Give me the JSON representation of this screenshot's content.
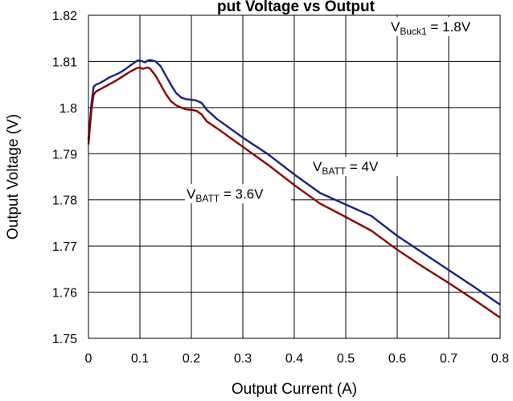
{
  "chart_data": {
    "type": "line",
    "title": "put Voltage vs Output",
    "xlabel": "Output Current (A)",
    "ylabel": "Output Voltage (V)",
    "xlim": [
      0,
      0.8
    ],
    "ylim": [
      1.75,
      1.82
    ],
    "xticks": [
      0,
      0.1,
      0.2,
      0.3,
      0.4,
      0.5,
      0.6,
      0.7,
      0.8
    ],
    "yticks": [
      1.75,
      1.76,
      1.77,
      1.78,
      1.79,
      1.8,
      1.81,
      1.82
    ],
    "xtick_labels": [
      "0",
      "0.1",
      "0.2",
      "0.3",
      "0.4",
      "0.5",
      "0.6",
      "0.7",
      "0.8"
    ],
    "ytick_labels": [
      "1.75",
      "1.76",
      "1.77",
      "1.78",
      "1.79",
      "1.8",
      "1.81",
      "1.82"
    ],
    "grid": true,
    "series": [
      {
        "label_main": "V",
        "label_sub": "BATT",
        "label_rest": " = 4V",
        "color": "#1a237e",
        "x": [
          0,
          0.003,
          0.006,
          0.01,
          0.015,
          0.02,
          0.03,
          0.04,
          0.05,
          0.06,
          0.07,
          0.08,
          0.09,
          0.095,
          0.1,
          0.105,
          0.11,
          0.115,
          0.12,
          0.125,
          0.13,
          0.14,
          0.15,
          0.16,
          0.17,
          0.18,
          0.19,
          0.2,
          0.21,
          0.22,
          0.23,
          0.25,
          0.3,
          0.35,
          0.4,
          0.45,
          0.5,
          0.55,
          0.6,
          0.65,
          0.7,
          0.75,
          0.8
        ],
        "y": [
          1.793,
          1.797,
          1.801,
          1.8045,
          1.805,
          1.8052,
          1.8058,
          1.8065,
          1.807,
          1.8075,
          1.8082,
          1.809,
          1.8098,
          1.8102,
          1.8102,
          1.81,
          1.8098,
          1.8102,
          1.8103,
          1.8102,
          1.81,
          1.809,
          1.807,
          1.805,
          1.8032,
          1.8022,
          1.8018,
          1.8017,
          1.8015,
          1.801,
          1.7995,
          1.7975,
          1.7935,
          1.7898,
          1.7855,
          1.7815,
          1.779,
          1.7765,
          1.7722,
          1.7685,
          1.7648,
          1.7611,
          1.7573
        ]
      },
      {
        "label_main": "V",
        "label_sub": "BATT",
        "label_rest": " = 3.6V",
        "color": "#8b0000",
        "x": [
          0,
          0.003,
          0.006,
          0.01,
          0.015,
          0.02,
          0.03,
          0.04,
          0.05,
          0.06,
          0.07,
          0.08,
          0.09,
          0.095,
          0.1,
          0.105,
          0.11,
          0.115,
          0.12,
          0.13,
          0.14,
          0.15,
          0.16,
          0.17,
          0.18,
          0.19,
          0.2,
          0.21,
          0.22,
          0.23,
          0.25,
          0.3,
          0.35,
          0.4,
          0.45,
          0.5,
          0.55,
          0.6,
          0.65,
          0.7,
          0.75,
          0.8
        ],
        "y": [
          1.792,
          1.796,
          1.7995,
          1.8028,
          1.8035,
          1.8038,
          1.8044,
          1.805,
          1.8056,
          1.8063,
          1.807,
          1.8077,
          1.8083,
          1.8086,
          1.8087,
          1.8084,
          1.8085,
          1.8087,
          1.8084,
          1.807,
          1.805,
          1.803,
          1.8014,
          1.8005,
          1.8,
          1.7996,
          1.7995,
          1.7993,
          1.7985,
          1.797,
          1.7955,
          1.7915,
          1.7875,
          1.7832,
          1.7792,
          1.7763,
          1.7733,
          1.7692,
          1.7655,
          1.762,
          1.7583,
          1.7545
        ]
      }
    ],
    "annotation": {
      "main": "V",
      "sub": "Buck1",
      "rest": " = 1.8V"
    }
  }
}
